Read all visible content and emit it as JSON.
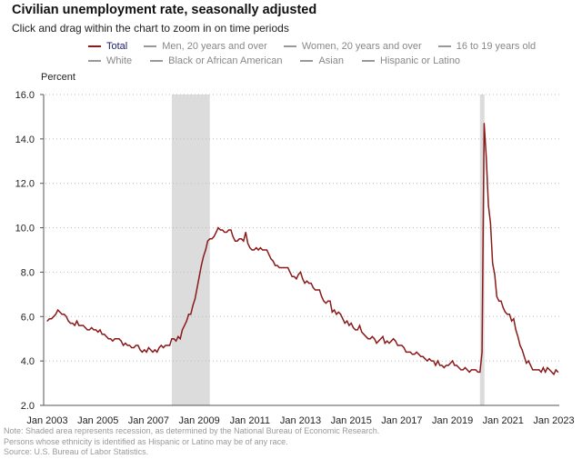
{
  "header": {
    "title": "Civilian unemployment rate, seasonally adjusted",
    "subtitle": "Click and drag within the chart to zoom in on time periods"
  },
  "legend": {
    "placement": "top",
    "items": [
      {
        "label": "Total",
        "active": true
      },
      {
        "label": "Men, 20 years and over",
        "active": false
      },
      {
        "label": "Women, 20 years and over",
        "active": false
      },
      {
        "label": "16 to 19 years old",
        "active": false
      },
      {
        "label": "White",
        "active": false
      },
      {
        "label": "Black or African American",
        "active": false
      },
      {
        "label": "Asian",
        "active": false
      },
      {
        "label": "Hispanic or Latino",
        "active": false
      }
    ]
  },
  "notes": [
    "Note: Shaded area represents recession, as determined by the National Bureau of Economic Research.",
    "Persons whose ethnicity is identified as Hispanic or Latino may be of any race.",
    "Source: U.S. Bureau of Labor Statistics."
  ],
  "chart_data": {
    "type": "line",
    "ylabel": "Percent",
    "ylim": [
      2.0,
      16.0
    ],
    "yticks": [
      "2.0",
      "4.0",
      "6.0",
      "8.0",
      "10.0",
      "12.0",
      "14.0",
      "16.0"
    ],
    "xticks": [
      "Jan 2003",
      "Jan 2005",
      "Jan 2007",
      "Jan 2009",
      "Jan 2011",
      "Jan 2013",
      "Jan 2015",
      "Jan 2017",
      "Jan 2019",
      "Jan 2021",
      "Jan 2023"
    ],
    "grid": "horizontal dotted",
    "colors": {
      "total": "#8b1a1a",
      "recession": "#dcdcdc"
    },
    "recessions": [
      [
        "Dec 2007",
        "Jun 2009"
      ],
      [
        "Feb 2020",
        "Apr 2020"
      ]
    ],
    "series": [
      {
        "name": "Total",
        "monthly_values_by_year": {
          "2003": [
            5.8,
            5.9,
            5.9,
            6.0,
            6.1,
            6.3,
            6.2,
            6.1,
            6.1,
            6.0,
            5.8,
            5.7
          ],
          "2004": [
            5.7,
            5.6,
            5.8,
            5.6,
            5.6,
            5.6,
            5.5,
            5.4,
            5.4,
            5.5,
            5.4,
            5.4
          ],
          "2005": [
            5.3,
            5.4,
            5.2,
            5.2,
            5.1,
            5.0,
            5.0,
            4.9,
            5.0,
            5.0,
            5.0,
            4.9
          ],
          "2006": [
            4.7,
            4.8,
            4.7,
            4.7,
            4.6,
            4.6,
            4.7,
            4.7,
            4.5,
            4.4,
            4.5,
            4.4
          ],
          "2007": [
            4.6,
            4.5,
            4.4,
            4.5,
            4.4,
            4.6,
            4.7,
            4.6,
            4.7,
            4.7,
            4.7,
            5.0
          ],
          "2008": [
            5.0,
            4.9,
            5.1,
            5.0,
            5.4,
            5.6,
            5.8,
            6.1,
            6.1,
            6.5,
            6.8,
            7.3
          ],
          "2009": [
            7.8,
            8.3,
            8.7,
            9.0,
            9.4,
            9.5,
            9.5,
            9.6,
            9.8,
            10.0,
            9.9,
            9.9
          ],
          "2010": [
            9.8,
            9.8,
            9.9,
            9.9,
            9.6,
            9.4,
            9.4,
            9.5,
            9.5,
            9.4,
            9.8,
            9.3
          ],
          "2011": [
            9.1,
            9.0,
            9.0,
            9.1,
            9.0,
            9.1,
            9.0,
            9.0,
            9.0,
            8.8,
            8.6,
            8.5
          ],
          "2012": [
            8.3,
            8.3,
            8.2,
            8.2,
            8.2,
            8.2,
            8.2,
            8.0,
            7.8,
            7.8,
            7.7,
            7.9
          ],
          "2013": [
            8.0,
            7.7,
            7.5,
            7.6,
            7.5,
            7.5,
            7.3,
            7.2,
            7.2,
            7.2,
            6.9,
            6.7
          ],
          "2014": [
            6.6,
            6.7,
            6.7,
            6.2,
            6.3,
            6.1,
            6.2,
            6.1,
            5.9,
            5.7,
            5.8,
            5.6
          ],
          "2015": [
            5.7,
            5.5,
            5.4,
            5.4,
            5.6,
            5.3,
            5.2,
            5.1,
            5.0,
            5.0,
            5.1,
            5.0
          ],
          "2016": [
            4.8,
            4.9,
            5.0,
            5.1,
            4.8,
            4.9,
            4.8,
            4.9,
            5.0,
            4.9,
            4.7,
            4.7
          ],
          "2017": [
            4.7,
            4.6,
            4.4,
            4.4,
            4.4,
            4.3,
            4.3,
            4.4,
            4.3,
            4.2,
            4.2,
            4.1
          ],
          "2018": [
            4.0,
            4.1,
            4.0,
            4.0,
            3.8,
            4.0,
            3.8,
            3.8,
            3.7,
            3.8,
            3.8,
            3.9
          ],
          "2019": [
            4.0,
            3.8,
            3.8,
            3.7,
            3.6,
            3.6,
            3.7,
            3.6,
            3.5,
            3.6,
            3.6,
            3.6
          ],
          "2020": [
            3.5,
            3.5,
            4.4,
            14.7,
            13.2,
            11.0,
            10.2,
            8.4,
            7.9,
            6.9,
            6.7,
            6.7
          ],
          "2021": [
            6.4,
            6.2,
            6.1,
            6.1,
            5.8,
            5.9,
            5.4,
            5.1,
            4.7,
            4.5,
            4.2,
            3.9
          ],
          "2022": [
            4.0,
            3.8,
            3.6,
            3.6,
            3.6,
            3.6,
            3.5,
            3.7,
            3.5,
            3.7,
            3.6,
            3.5
          ],
          "2023": [
            3.4,
            3.6,
            3.5
          ]
        }
      }
    ]
  }
}
